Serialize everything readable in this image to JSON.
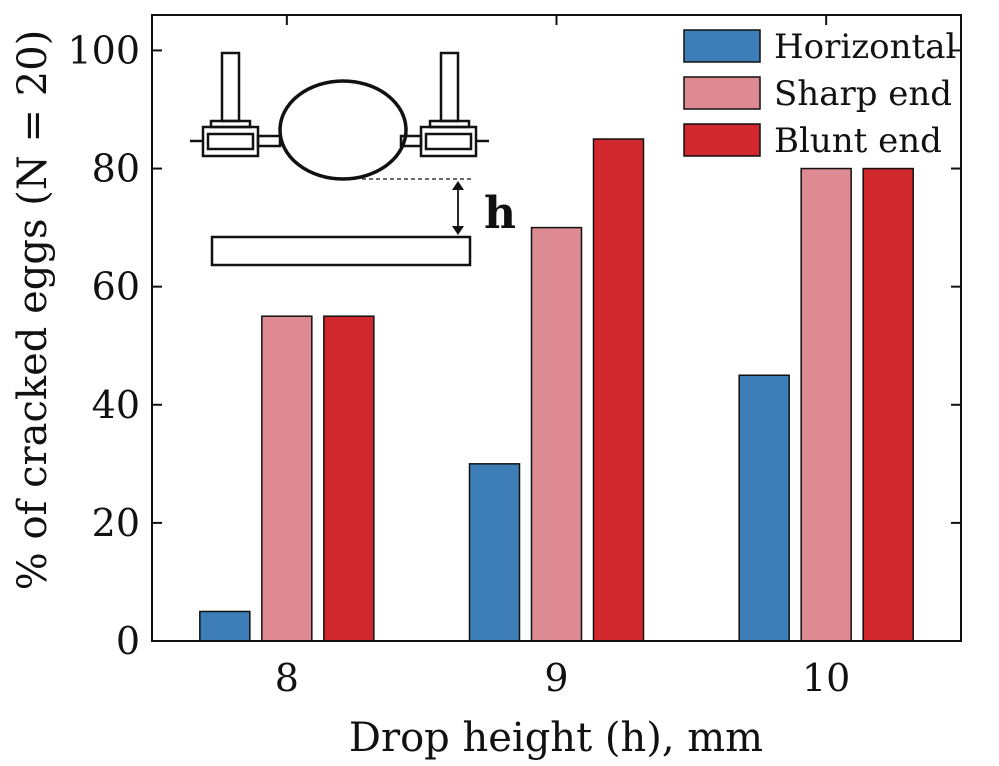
{
  "chart_data": {
    "type": "bar",
    "categories": [
      "8",
      "9",
      "10"
    ],
    "series": [
      {
        "name": "Horizontal",
        "values": [
          5,
          30,
          45
        ],
        "color": "#3d7db8"
      },
      {
        "name": "Sharp end",
        "values": [
          55,
          70,
          80
        ],
        "color": "#de8a93"
      },
      {
        "name": "Blunt end",
        "values": [
          55,
          85,
          80
        ],
        "color": "#d1282e"
      }
    ],
    "xlabel": "Drop height (h), mm",
    "ylabel": "% of cracked eggs (N = 20)",
    "ylim": [
      0,
      106
    ],
    "yticks": [
      0,
      20,
      40,
      60,
      80,
      100
    ],
    "grid": false,
    "legend": "top-right",
    "inset": {
      "description": "egg held horizontally between two clamps above a plate",
      "label": "h"
    }
  }
}
